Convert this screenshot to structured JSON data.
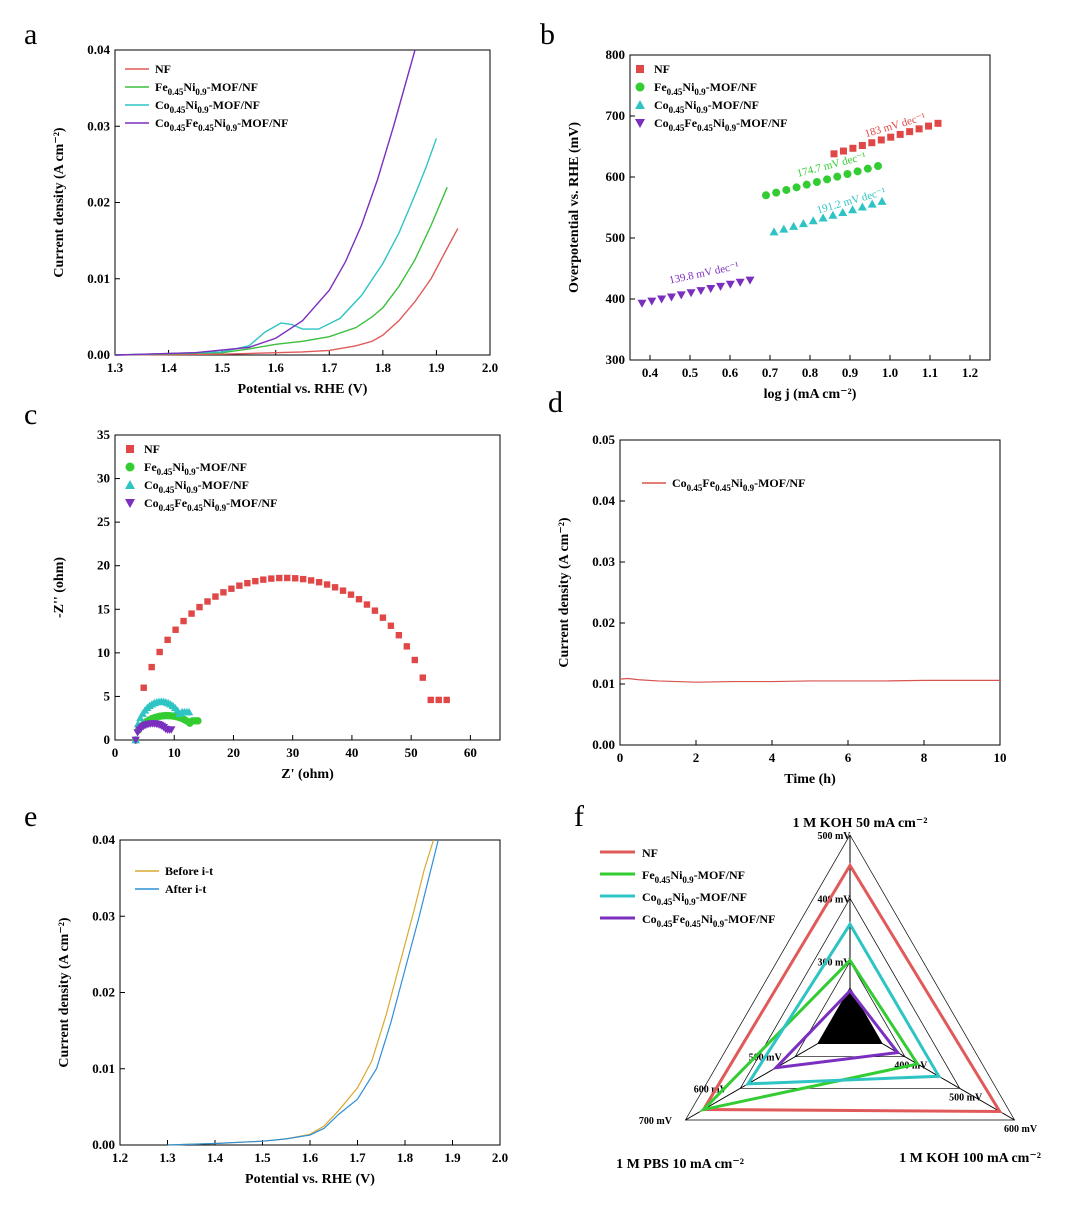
{
  "panels": {
    "a": {
      "label": "a",
      "chart_data": {
        "type": "line",
        "xlabel": "Potential vs. RHE (V)",
        "ylabel": "Current density (A cm⁻²)",
        "xlim": [
          1.3,
          2.0
        ],
        "ylim": [
          0,
          0.04
        ],
        "xticks": [
          "1.3",
          "1.4",
          "1.5",
          "1.6",
          "1.7",
          "1.8",
          "1.9",
          "2.0"
        ],
        "yticks": [
          "0.00",
          "0.01",
          "0.02",
          "0.03",
          "0.04"
        ],
        "legend": "top-left",
        "series": [
          {
            "name": "NF",
            "color": "#e05a5a",
            "x": [
              1.3,
              1.5,
              1.65,
              1.7,
              1.75,
              1.78,
              1.8,
              1.83,
              1.86,
              1.89,
              1.92,
              1.94
            ],
            "y": [
              0,
              0.0001,
              0.0004,
              0.0006,
              0.0012,
              0.0018,
              0.0026,
              0.0045,
              0.007,
              0.01,
              0.014,
              0.0166
            ]
          },
          {
            "name": "Fe0.45Ni0.9-MOF/NF",
            "color": "#3cbf3c",
            "x": [
              1.3,
              1.5,
              1.55,
              1.6,
              1.65,
              1.7,
              1.75,
              1.78,
              1.8,
              1.83,
              1.86,
              1.89,
              1.92
            ],
            "y": [
              0,
              0.0003,
              0.0008,
              0.0014,
              0.0018,
              0.0024,
              0.0036,
              0.005,
              0.0062,
              0.009,
              0.0125,
              0.017,
              0.022
            ]
          },
          {
            "name": "Co0.45Ni0.9-MOF/NF",
            "color": "#2ec4c4",
            "x": [
              1.3,
              1.5,
              1.55,
              1.58,
              1.61,
              1.63,
              1.65,
              1.68,
              1.72,
              1.76,
              1.8,
              1.83,
              1.86,
              1.88,
              1.9
            ],
            "y": [
              0,
              0.0004,
              0.0012,
              0.003,
              0.0042,
              0.004,
              0.0034,
              0.0034,
              0.0048,
              0.0078,
              0.012,
              0.016,
              0.021,
              0.0245,
              0.0284
            ]
          },
          {
            "name": "Co0.45Fe0.45Ni0.9-MOF/NF",
            "color": "#7b2fbe",
            "x": [
              1.3,
              1.45,
              1.55,
              1.6,
              1.65,
              1.7,
              1.73,
              1.76,
              1.79,
              1.82,
              1.84,
              1.86
            ],
            "y": [
              0,
              0.0003,
              0.001,
              0.0022,
              0.0045,
              0.0085,
              0.0122,
              0.017,
              0.023,
              0.03,
              0.035,
              0.04
            ]
          }
        ]
      }
    },
    "b": {
      "label": "b",
      "chart_data": {
        "type": "scatter",
        "xlabel": "log j (mA cm⁻²)",
        "ylabel": "Overpotential vs. RHE (mV)",
        "xlim": [
          0.35,
          1.25
        ],
        "ylim": [
          300,
          800
        ],
        "xticks": [
          "0.4",
          "0.5",
          "0.6",
          "0.7",
          "0.8",
          "0.9",
          "1.0",
          "1.1",
          "1.2"
        ],
        "yticks": [
          "300",
          "400",
          "500",
          "600",
          "700",
          "800"
        ],
        "legend": "top-left",
        "series": [
          {
            "name": "NF",
            "marker": "square",
            "color": "#e04848",
            "x0": 0.86,
            "x1": 1.12,
            "y0": 638,
            "y1": 688,
            "count": 12,
            "slope_label": "183 mV dec⁻¹",
            "label_x": 0.94,
            "label_y": 665
          },
          {
            "name": "Fe0.45Ni0.9-MOF/NF",
            "marker": "circle",
            "color": "#33cc33",
            "x0": 0.69,
            "x1": 0.97,
            "y0": 570,
            "y1": 618,
            "count": 12,
            "slope_label": "174.7 mV dec⁻¹",
            "label_x": 0.77,
            "label_y": 600
          },
          {
            "name": "Co0.45Ni0.9-MOF/NF",
            "marker": "triangle-up",
            "color": "#2ec4c4",
            "x0": 0.71,
            "x1": 0.98,
            "y0": 510,
            "y1": 560,
            "count": 12,
            "slope_label": "191.2 mV dec⁻¹",
            "label_x": 0.82,
            "label_y": 540
          },
          {
            "name": "Co0.45Fe0.45Ni0.9-MOF/NF",
            "marker": "triangle-down",
            "color": "#7b2fbe",
            "x0": 0.38,
            "x1": 0.65,
            "y0": 393,
            "y1": 431,
            "count": 12,
            "slope_label": "139.8 mV dec⁻¹",
            "label_x": 0.45,
            "label_y": 425
          }
        ]
      }
    },
    "c": {
      "label": "c",
      "chart_data": {
        "type": "scatter",
        "xlabel": "Z' (ohm)",
        "ylabel": "-Z'' (ohm)",
        "xlim": [
          0,
          65
        ],
        "ylim": [
          0,
          35
        ],
        "xticks": [
          "0",
          "10",
          "20",
          "30",
          "40",
          "50",
          "60"
        ],
        "yticks": [
          "0",
          "5",
          "10",
          "15",
          "20",
          "25",
          "30",
          "35"
        ],
        "legend": "top-left",
        "series": [
          {
            "name": "NF",
            "marker": "square",
            "color": "#e04848",
            "cx": 28.7,
            "r": 25.2,
            "h": 18.6,
            "start": 3.5,
            "end": 56,
            "endY": 4.6,
            "count": 40
          },
          {
            "name": "Fe0.45Ni0.9-MOF/NF",
            "marker": "circle",
            "color": "#33cc33",
            "cx": 8.8,
            "r": 5.3,
            "h": 2.8,
            "start": 3.5,
            "end": 14,
            "endY": 2.2,
            "count": 24
          },
          {
            "name": "Co0.45Ni0.9-MOF/NF",
            "marker": "triangle-up",
            "color": "#2ec4c4",
            "cx": 7.8,
            "r": 4.3,
            "h": 4.4,
            "start": 3.5,
            "end": 12.5,
            "endY": 3.2,
            "count": 24
          },
          {
            "name": "Co0.45Fe0.45Ni0.9-MOF/NF",
            "marker": "triangle-down",
            "color": "#7b2fbe",
            "cx": 6.4,
            "r": 2.9,
            "h": 1.9,
            "start": 3.5,
            "end": 9.5,
            "endY": 1.2,
            "count": 20
          }
        ]
      }
    },
    "d": {
      "label": "d",
      "chart_data": {
        "type": "line",
        "xlabel": "Time (h)",
        "ylabel": "Current density (A cm⁻²)",
        "xlim": [
          0,
          10
        ],
        "ylim": [
          0,
          0.05
        ],
        "xticks": [
          "0",
          "2",
          "4",
          "6",
          "8",
          "10"
        ],
        "yticks": [
          "0.00",
          "0.01",
          "0.02",
          "0.03",
          "0.04",
          "0.05"
        ],
        "legend": "top-left",
        "series": [
          {
            "name": "Co0.45Fe0.45Ni0.9-MOF/NF",
            "color": "#d9534f",
            "x": [
              0,
              0.2,
              0.5,
              1,
              2,
              3,
              4,
              5,
              6,
              7,
              8,
              9,
              10
            ],
            "y": [
              0.0108,
              0.0109,
              0.0107,
              0.0105,
              0.0103,
              0.0104,
              0.0104,
              0.0105,
              0.0105,
              0.0105,
              0.0106,
              0.0106,
              0.0106
            ]
          }
        ]
      }
    },
    "e": {
      "label": "e",
      "chart_data": {
        "type": "line",
        "xlabel": "Potential vs. RHE (V)",
        "ylabel": "Current density (A cm⁻²)",
        "xlim": [
          1.2,
          2.0
        ],
        "ylim": [
          0,
          0.04
        ],
        "xticks": [
          "1.2",
          "1.3",
          "1.4",
          "1.5",
          "1.6",
          "1.7",
          "1.8",
          "1.9",
          "2.0"
        ],
        "yticks": [
          "0.00",
          "0.01",
          "0.02",
          "0.03",
          "0.04"
        ],
        "legend": "top-left",
        "series": [
          {
            "name": "Before i-t",
            "color": "#d9a830",
            "x": [
              1.3,
              1.4,
              1.5,
              1.55,
              1.6,
              1.63,
              1.66,
              1.7,
              1.73,
              1.76,
              1.79,
              1.82,
              1.84,
              1.86
            ],
            "y": [
              0,
              0.0002,
              0.0005,
              0.0008,
              0.0014,
              0.0025,
              0.0045,
              0.0075,
              0.011,
              0.017,
              0.024,
              0.031,
              0.036,
              0.04
            ]
          },
          {
            "name": "After i-t",
            "color": "#2f8fd6",
            "x": [
              1.3,
              1.4,
              1.5,
              1.55,
              1.6,
              1.63,
              1.66,
              1.7,
              1.74,
              1.77,
              1.8,
              1.83,
              1.85,
              1.87
            ],
            "y": [
              0,
              0.0002,
              0.0005,
              0.0008,
              0.0013,
              0.0022,
              0.004,
              0.006,
              0.01,
              0.016,
              0.023,
              0.03,
              0.035,
              0.04
            ]
          }
        ]
      }
    },
    "f": {
      "label": "f",
      "chart_data": {
        "type": "radar",
        "axes": [
          "1 M KOH 50 mA cm⁻²",
          "1 M KOH 100 mA cm⁻²",
          "1 M PBS 10 mA cm⁻²"
        ],
        "range_mV": [
          200,
          500
        ],
        "ticks_top": [
          "300 mV",
          "400 mV",
          "500 mV"
        ],
        "ticks_right": [
          "400 mV",
          "500 mV",
          "600 mV"
        ],
        "ticks_left": [
          "500 mV",
          "600 mV",
          "700 mV"
        ],
        "legend": "top-left",
        "series": [
          {
            "name": "NF",
            "color": "#e05a5a",
            "values": [
              0.84,
              0.91,
              0.89
            ]
          },
          {
            "name": "Fe0.45Ni0.9-MOF/NF",
            "color": "#33cc33",
            "values": [
              0.34,
              0.41,
              0.89
            ]
          },
          {
            "name": "Co0.45Ni0.9-MOF/NF",
            "color": "#2ec4c4",
            "values": [
              0.53,
              0.54,
              0.62
            ]
          },
          {
            "name": "Co0.45Fe0.45Ni0.9-MOF/NF",
            "color": "#7b2fbe",
            "values": [
              0.18,
              0.29,
              0.45
            ]
          }
        ]
      }
    }
  }
}
